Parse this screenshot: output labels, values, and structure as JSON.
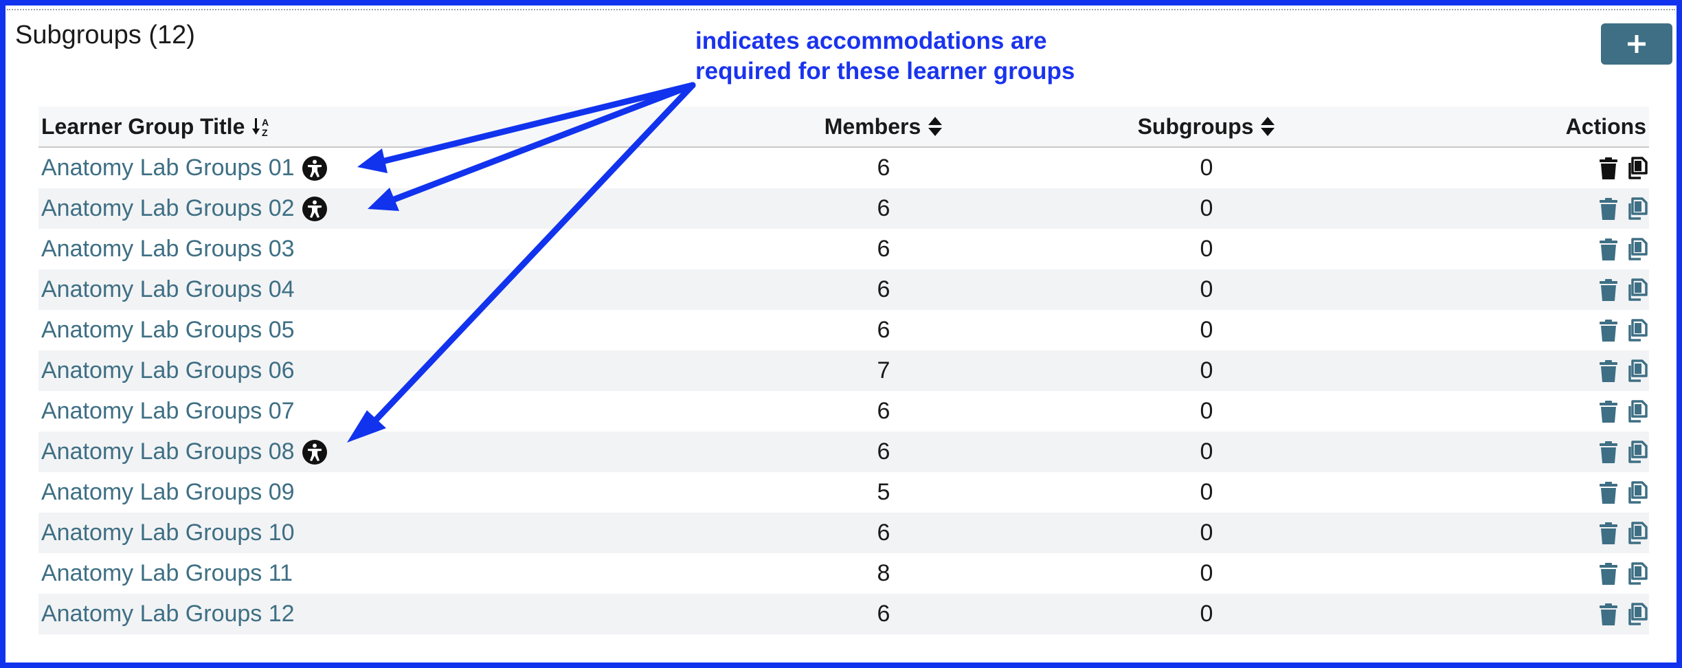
{
  "section": {
    "title": "Subgroups (12)",
    "add_button_label": "+"
  },
  "annotation": {
    "line1": "indicates accommodations are",
    "line2": "required for these learner groups",
    "color": "#1a33ee"
  },
  "table": {
    "headers": {
      "title": "Learner Group Title",
      "members": "Members",
      "subgroups": "Subgroups",
      "actions": "Actions"
    },
    "rows": [
      {
        "title": "Anatomy Lab Groups 01",
        "members": "6",
        "subgroups": "0",
        "accommodation": true
      },
      {
        "title": "Anatomy Lab Groups 02",
        "members": "6",
        "subgroups": "0",
        "accommodation": true
      },
      {
        "title": "Anatomy Lab Groups 03",
        "members": "6",
        "subgroups": "0",
        "accommodation": false
      },
      {
        "title": "Anatomy Lab Groups 04",
        "members": "6",
        "subgroups": "0",
        "accommodation": false
      },
      {
        "title": "Anatomy Lab Groups 05",
        "members": "6",
        "subgroups": "0",
        "accommodation": false
      },
      {
        "title": "Anatomy Lab Groups 06",
        "members": "7",
        "subgroups": "0",
        "accommodation": false
      },
      {
        "title": "Anatomy Lab Groups 07",
        "members": "6",
        "subgroups": "0",
        "accommodation": false
      },
      {
        "title": "Anatomy Lab Groups 08",
        "members": "6",
        "subgroups": "0",
        "accommodation": true
      },
      {
        "title": "Anatomy Lab Groups 09",
        "members": "5",
        "subgroups": "0",
        "accommodation": false
      },
      {
        "title": "Anatomy Lab Groups 10",
        "members": "6",
        "subgroups": "0",
        "accommodation": false
      },
      {
        "title": "Anatomy Lab Groups 11",
        "members": "8",
        "subgroups": "0",
        "accommodation": false
      },
      {
        "title": "Anatomy Lab Groups 12",
        "members": "6",
        "subgroups": "0",
        "accommodation": false
      }
    ]
  },
  "icons": {
    "accommodation": "universal-access-icon",
    "delete": "trash-icon",
    "copy": "copy-icon",
    "sort_title": "sort-alpha-down-icon",
    "sort_members": "sort-icon",
    "sort_subgroups": "sort-icon"
  },
  "colors": {
    "border": "#1133ee",
    "link": "#3e6f84",
    "button": "#3e6f84",
    "first_row_icon": "#111111"
  }
}
